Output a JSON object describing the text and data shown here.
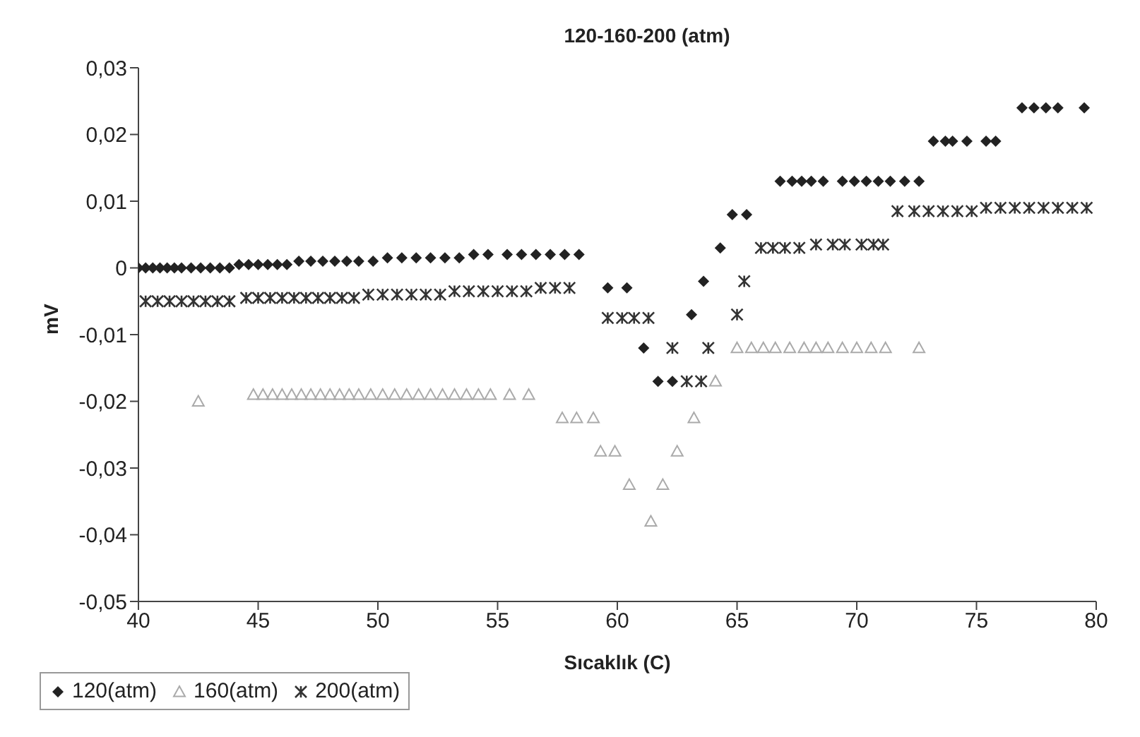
{
  "chart_data": {
    "type": "scatter",
    "title": "120-160-200 (atm)",
    "xlabel": "Sıcaklık (C)",
    "ylabel": "mV",
    "xlim": [
      40,
      80
    ],
    "xticks": [
      40,
      45,
      50,
      55,
      60,
      65,
      70,
      75,
      80
    ],
    "ylim": [
      -0.05,
      0.03
    ],
    "yticks": [
      {
        "value": -0.05,
        "label": "-0,05"
      },
      {
        "value": -0.04,
        "label": "-0,04"
      },
      {
        "value": -0.03,
        "label": "-0,03"
      },
      {
        "value": -0.02,
        "label": "-0,02"
      },
      {
        "value": -0.01,
        "label": "-0,01"
      },
      {
        "value": 0,
        "label": "0"
      },
      {
        "value": 0.01,
        "label": "0,01"
      },
      {
        "value": 0.02,
        "label": "0,02"
      },
      {
        "value": 0.03,
        "label": "0,03"
      }
    ],
    "grid": false,
    "legend": "bottom left",
    "series": [
      {
        "name": "120(atm)",
        "color": "#222222",
        "marker": "diamond",
        "x": [
          40,
          40.3,
          40.6,
          40.9,
          41.2,
          41.5,
          41.8,
          42.2,
          42.6,
          43,
          43.4,
          43.8,
          44.2,
          44.6,
          45,
          45.4,
          45.8,
          46.2,
          46.7,
          47.2,
          47.7,
          48.2,
          48.7,
          49.2,
          49.8,
          50.4,
          51,
          51.6,
          52.2,
          52.8,
          53.4,
          54,
          54.6,
          55.4,
          56,
          56.6,
          57.2,
          57.8,
          58.4,
          59.6,
          60.4,
          61.1,
          61.7,
          62.3,
          63.1,
          63.6,
          64.3,
          64.8,
          65.4,
          66.8,
          67.3,
          67.7,
          68.1,
          68.6,
          69.4,
          69.9,
          70.4,
          70.9,
          71.4,
          72,
          72.6,
          73.2,
          73.7,
          74,
          74.6,
          75.4,
          75.8,
          76.9,
          77.4,
          77.9,
          78.4,
          79.5
        ],
        "values": [
          0,
          0,
          0,
          0,
          0,
          0,
          0,
          0,
          0,
          0,
          0,
          0,
          0.0005,
          0.0005,
          0.0005,
          0.0005,
          0.0005,
          0.0005,
          0.001,
          0.001,
          0.001,
          0.001,
          0.001,
          0.001,
          0.001,
          0.0015,
          0.0015,
          0.0015,
          0.0015,
          0.0015,
          0.0015,
          0.002,
          0.002,
          0.002,
          0.002,
          0.002,
          0.002,
          0.002,
          0.002,
          -0.003,
          -0.003,
          -0.012,
          -0.017,
          -0.017,
          -0.007,
          -0.002,
          0.003,
          0.008,
          0.008,
          0.013,
          0.013,
          0.013,
          0.013,
          0.013,
          0.013,
          0.013,
          0.013,
          0.013,
          0.013,
          0.013,
          0.013,
          0.019,
          0.019,
          0.019,
          0.019,
          0.019,
          0.019,
          0.024,
          0.024,
          0.024,
          0.024,
          0.024
        ]
      },
      {
        "name": "160(atm)",
        "color": "#aaaaaa",
        "marker": "triangle",
        "x": [
          42.5,
          44.8,
          45.2,
          45.6,
          46,
          46.4,
          46.8,
          47.2,
          47.6,
          48,
          48.4,
          48.8,
          49.2,
          49.7,
          50.2,
          50.7,
          51.2,
          51.7,
          52.2,
          52.7,
          53.2,
          53.7,
          54.2,
          54.7,
          55.5,
          56.3,
          57.7,
          58.3,
          59,
          59.3,
          59.9,
          60.5,
          61.4,
          61.9,
          62.5,
          63.2,
          64.1,
          65,
          65.6,
          66.1,
          66.6,
          67.2,
          67.8,
          68.3,
          68.8,
          69.4,
          70,
          70.6,
          71.2,
          72.6
        ],
        "values": [
          -0.02,
          -0.019,
          -0.019,
          -0.019,
          -0.019,
          -0.019,
          -0.019,
          -0.019,
          -0.019,
          -0.019,
          -0.019,
          -0.019,
          -0.019,
          -0.019,
          -0.019,
          -0.019,
          -0.019,
          -0.019,
          -0.019,
          -0.019,
          -0.019,
          -0.019,
          -0.019,
          -0.019,
          -0.019,
          -0.019,
          -0.0225,
          -0.0225,
          -0.0225,
          -0.0275,
          -0.0275,
          -0.0325,
          -0.038,
          -0.0325,
          -0.0275,
          -0.0225,
          -0.017,
          -0.012,
          -0.012,
          -0.012,
          -0.012,
          -0.012,
          -0.012,
          -0.012,
          -0.012,
          -0.012,
          -0.012,
          -0.012,
          -0.012,
          -0.012
        ]
      },
      {
        "name": "200(atm)",
        "color": "#333333",
        "marker": "cross",
        "x": [
          40.3,
          40.8,
          41.3,
          41.8,
          42.3,
          42.8,
          43.3,
          43.8,
          44.5,
          45,
          45.5,
          46,
          46.5,
          47,
          47.5,
          48,
          48.5,
          49,
          49.6,
          50.2,
          50.8,
          51.4,
          52,
          52.6,
          53.2,
          53.8,
          54.4,
          55,
          55.6,
          56.2,
          56.8,
          57.4,
          58,
          59.6,
          60.2,
          60.7,
          61.3,
          62.3,
          62.9,
          63.5,
          63.8,
          65,
          65.3,
          66,
          66.5,
          67,
          67.6,
          68.3,
          69,
          69.5,
          70.2,
          70.7,
          71.1,
          71.7,
          72.4,
          73,
          73.6,
          74.2,
          74.8,
          75.4,
          76,
          76.6,
          77.2,
          77.8,
          78.4,
          79,
          79.6
        ],
        "values": [
          -0.005,
          -0.005,
          -0.005,
          -0.005,
          -0.005,
          -0.005,
          -0.005,
          -0.005,
          -0.0045,
          -0.0045,
          -0.0045,
          -0.0045,
          -0.0045,
          -0.0045,
          -0.0045,
          -0.0045,
          -0.0045,
          -0.0045,
          -0.004,
          -0.004,
          -0.004,
          -0.004,
          -0.004,
          -0.004,
          -0.0035,
          -0.0035,
          -0.0035,
          -0.0035,
          -0.0035,
          -0.0035,
          -0.003,
          -0.003,
          -0.003,
          -0.0075,
          -0.0075,
          -0.0075,
          -0.0075,
          -0.012,
          -0.017,
          -0.017,
          -0.012,
          -0.007,
          -0.002,
          0.003,
          0.003,
          0.003,
          0.003,
          0.0035,
          0.0035,
          0.0035,
          0.0035,
          0.0035,
          0.0035,
          0.0085,
          0.0085,
          0.0085,
          0.0085,
          0.0085,
          0.0085,
          0.009,
          0.009,
          0.009,
          0.009,
          0.009,
          0.009,
          0.009,
          0.009
        ]
      }
    ]
  }
}
